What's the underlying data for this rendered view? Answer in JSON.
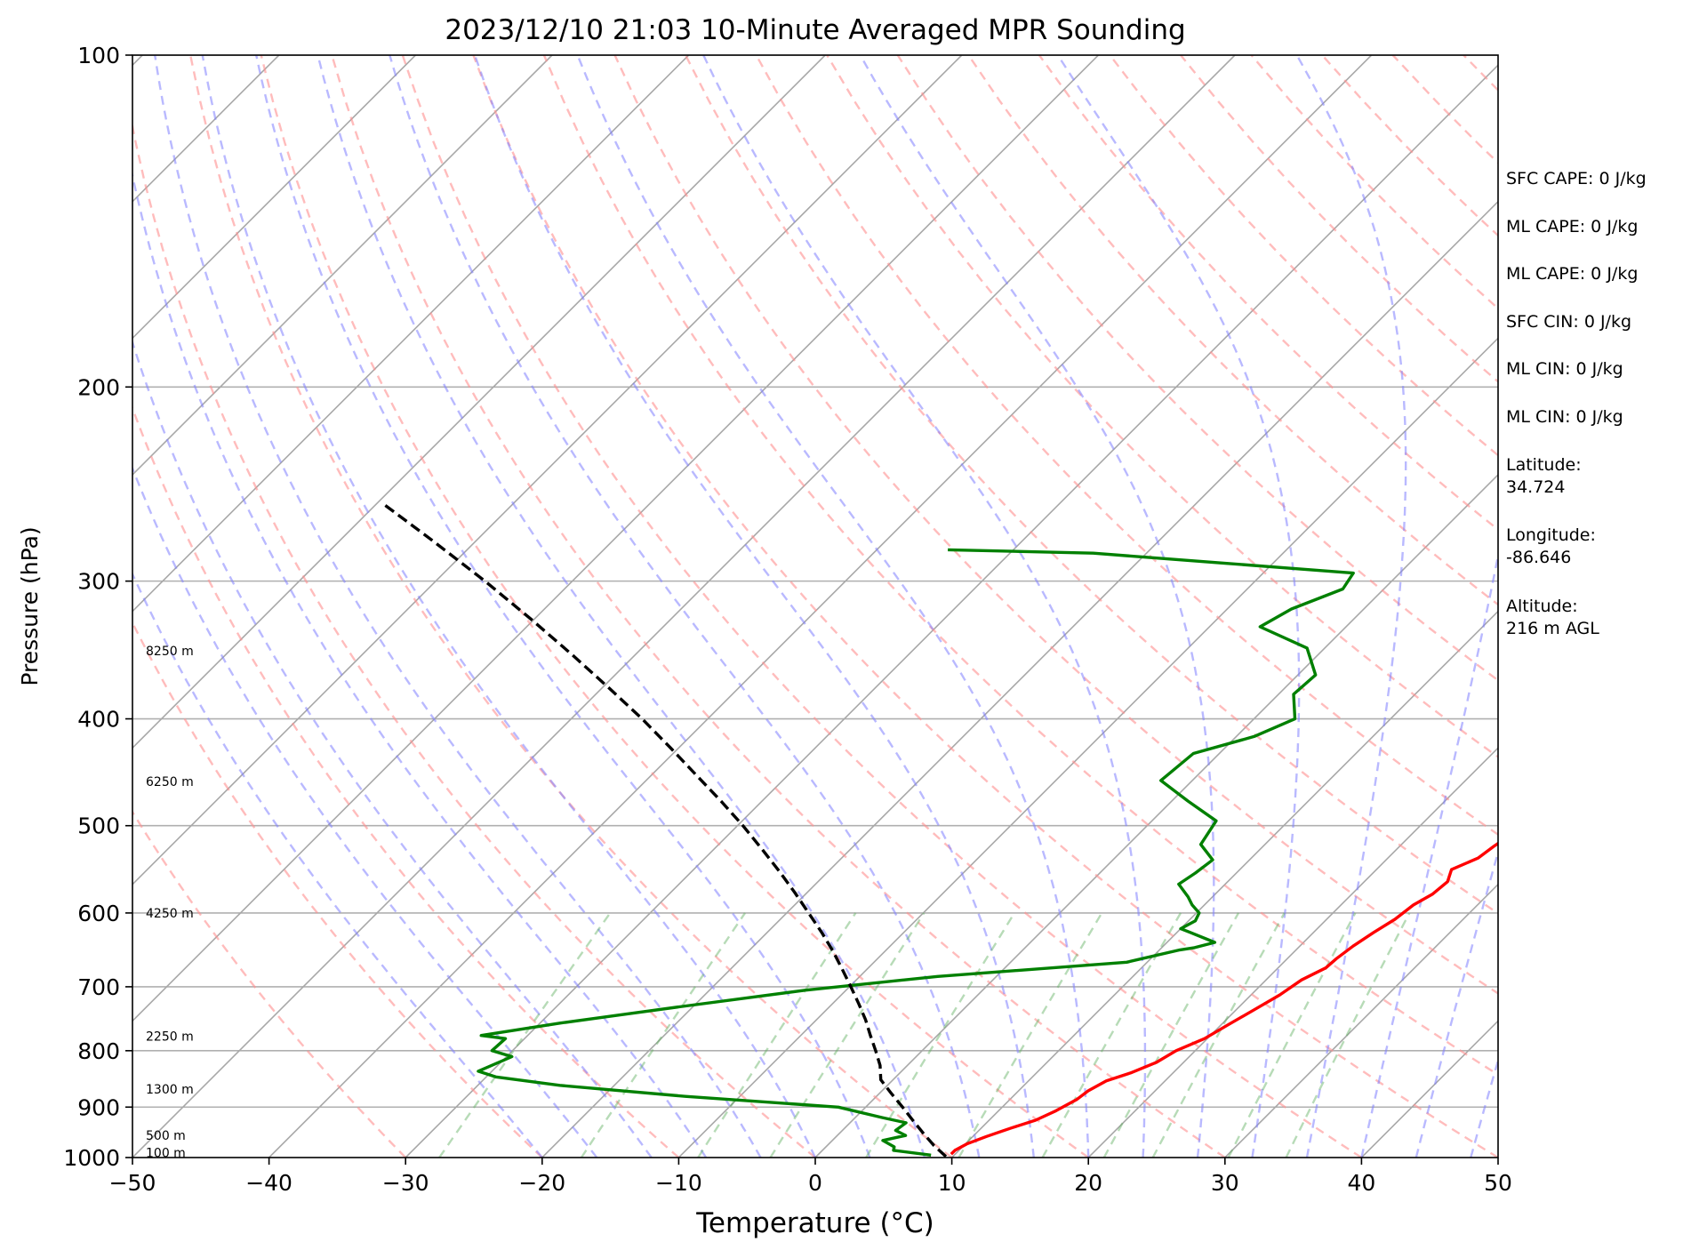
{
  "chart_data": {
    "type": "line",
    "title": "2023/12/10 21:03 10-Minute Averaged MPR Sounding",
    "xlabel": "Temperature (°C)",
    "ylabel": "Pressure (hPa)",
    "xlim": [
      -50,
      50
    ],
    "ylim": [
      1000,
      100
    ],
    "y_scale": "log",
    "skew_degrees": 45,
    "grid": true,
    "x_ticks": [
      "−50",
      "−40",
      "−30",
      "−20",
      "−10",
      "0",
      "10",
      "20",
      "30",
      "40",
      "50"
    ],
    "y_ticks": [
      "100",
      "200",
      "300",
      "400",
      "500",
      "600",
      "700",
      "800",
      "900",
      "1000"
    ],
    "height_labels": [
      {
        "text": "100 m",
        "pressure": 990
      },
      {
        "text": "500 m",
        "pressure": 955
      },
      {
        "text": "1300 m",
        "pressure": 867
      },
      {
        "text": "2250 m",
        "pressure": 776
      },
      {
        "text": "4250 m",
        "pressure": 600
      },
      {
        "text": "6250 m",
        "pressure": 456
      },
      {
        "text": "8250 m",
        "pressure": 347
      }
    ],
    "series": [
      {
        "color": "#ff0000",
        "pressure": [
          993,
          985,
          972,
          957,
          940,
          925,
          907,
          886,
          870,
          852,
          838,
          820,
          800,
          780,
          758,
          735,
          712,
          690,
          673,
          660,
          643,
          625,
          608,
          590,
          577,
          562,
          548,
          535,
          522,
          509,
          496,
          483,
          470,
          457,
          444,
          432,
          420,
          408,
          396,
          384,
          372,
          360,
          348,
          336,
          324,
          311,
          300,
          287,
          276,
          264,
          252
        ],
        "temperature": [
          9.7,
          9.7,
          10.1,
          11.0,
          12.2,
          13.4,
          14.2,
          14.9,
          15.1,
          15.7,
          16.9,
          18.0,
          18.6,
          19.8,
          20.5,
          21.3,
          22.1,
          22.6,
          23.5,
          23.6,
          23.9,
          24.4,
          25.0,
          25.3,
          25.9,
          26.1,
          25.5,
          26.6,
          26.9,
          27.3,
          27.4,
          27.7,
          27.6,
          28.0,
          28.0,
          28.1,
          28.5,
          29.0,
          29.5,
          29.4,
          29.2,
          29.4,
          29.5,
          29.5,
          29.3,
          29.2,
          29.5,
          29.5,
          29.6,
          29.1,
          29.3
        ]
      },
      {
        "color": "#008000",
        "pressure": [
          995,
          985,
          978,
          965,
          955,
          945,
          930,
          920,
          900,
          880,
          860,
          845,
          835,
          810,
          800,
          780,
          775,
          755,
          730,
          705,
          685,
          665,
          648,
          645,
          638,
          625,
          620,
          610,
          600,
          590,
          580,
          565,
          552,
          537,
          520,
          495,
          475,
          455,
          430,
          415,
          400,
          380,
          365,
          345,
          330,
          318,
          305,
          295,
          283,
          281
        ],
        "temperature": [
          8.3,
          5.2,
          5.0,
          3.7,
          5.0,
          3.9,
          4.1,
          2.0,
          -2.0,
          -14.0,
          -24.0,
          -29.3,
          -31.0,
          -29.6,
          -31.5,
          -31.4,
          -33.4,
          -28.5,
          -21.0,
          -13.0,
          -4.3,
          8.5,
          11.5,
          12.4,
          13.5,
          11.0,
          10.0,
          10.5,
          10.2,
          9.1,
          8.2,
          6.6,
          7.0,
          7.3,
          5.3,
          4.7,
          1.2,
          -2.3,
          -1.9,
          1.3,
          3.0,
          1.1,
          1.3,
          -1.3,
          -6.3,
          -5.3,
          -3.0,
          -3.4,
          -23.9,
          -34.8
        ]
      },
      {
        "color": "#000000",
        "dash": true,
        "pressure": [
          998,
          975,
          950,
          925,
          900,
          875,
          850,
          825,
          800,
          775,
          750,
          725,
          700,
          675,
          650,
          625,
          600,
          575,
          550,
          525,
          500,
          475,
          450,
          425,
          400,
          375,
          350,
          325,
          300,
          275,
          255
        ],
        "temperature": [
          9.5,
          7.8,
          6.1,
          4.4,
          2.7,
          0.9,
          -0.9,
          -2.0,
          -3.4,
          -4.9,
          -6.4,
          -8.1,
          -9.9,
          -11.8,
          -13.8,
          -16.0,
          -18.4,
          -20.9,
          -23.6,
          -26.5,
          -29.6,
          -33.0,
          -36.7,
          -40.6,
          -44.8,
          -49.5,
          -54.6,
          -60.2,
          -66.4,
          -73.4,
          -79.6
        ]
      }
    ]
  },
  "info": {
    "sfc_cape": "SFC CAPE: 0 J/kg",
    "ml_cape": "ML CAPE: 0 J/kg",
    "ml_cape_2": "ML CAPE: 0 J/kg",
    "sfc_cin": "SFC CIN: 0 J/kg",
    "ml_cin": "ML CIN: 0 J/kg",
    "ml_cin_2": "ML CIN: 0 J/kg",
    "latitude_label": "Latitude:",
    "latitude_value": "34.724",
    "longitude_label": "Longitude:",
    "longitude_value": "-86.646",
    "altitude_label": "Altitude:",
    "altitude_value": "216 m AGL"
  }
}
